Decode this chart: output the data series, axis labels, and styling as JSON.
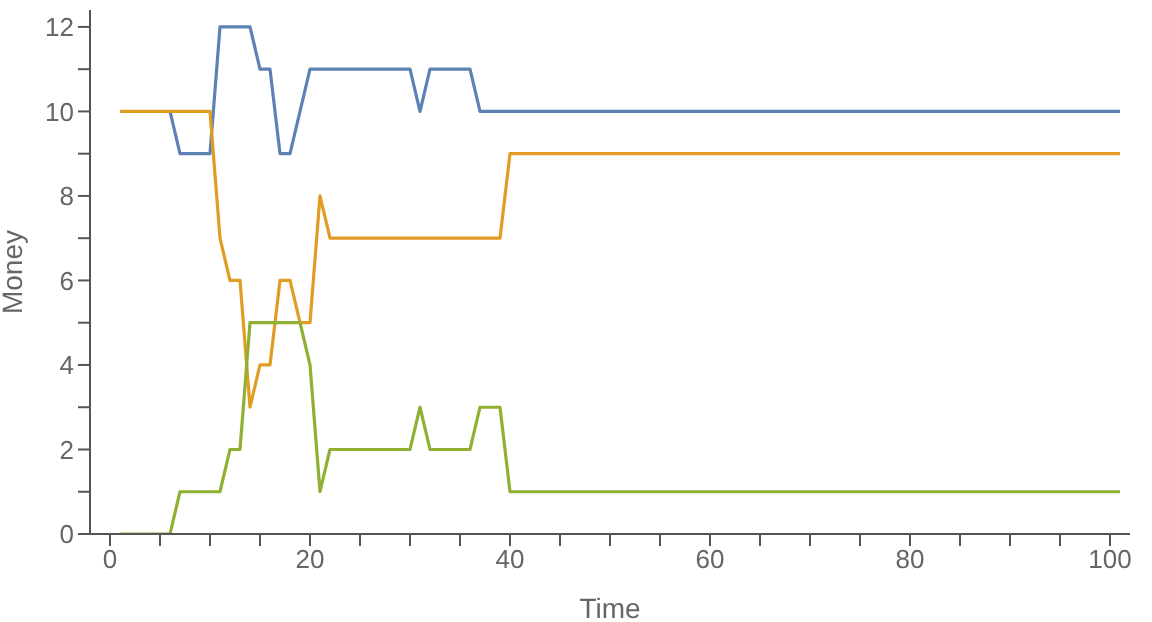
{
  "chart_data": {
    "type": "line",
    "xlabel": "Time",
    "ylabel": "Money",
    "x": [
      1,
      2,
      3,
      4,
      5,
      6,
      7,
      8,
      9,
      10,
      11,
      12,
      13,
      14,
      15,
      16,
      17,
      18,
      19,
      20,
      21,
      22,
      23,
      24,
      25,
      26,
      27,
      28,
      29,
      30,
      31,
      32,
      33,
      34,
      35,
      36,
      37,
      38,
      39,
      40,
      41,
      42,
      43,
      44,
      45,
      46,
      47,
      48,
      49,
      50,
      51,
      52,
      53,
      54,
      55,
      56,
      57,
      58,
      59,
      60,
      61,
      62,
      63,
      64,
      65,
      66,
      67,
      68,
      69,
      70,
      71,
      72,
      73,
      74,
      75,
      76,
      77,
      78,
      79,
      80,
      81,
      82,
      83,
      84,
      85,
      86,
      87,
      88,
      89,
      90,
      91,
      92,
      93,
      94,
      95,
      96,
      97,
      98,
      99,
      100,
      101
    ],
    "series": [
      {
        "color": "#5e81b5",
        "values": [
          null,
          null,
          null,
          null,
          null,
          10,
          9,
          9,
          9,
          9,
          12,
          12,
          12,
          12,
          11,
          11,
          9,
          9,
          10,
          11,
          11,
          11,
          11,
          11,
          11,
          11,
          11,
          11,
          11,
          11,
          10,
          11,
          11,
          11,
          11,
          11,
          10,
          10,
          10,
          10,
          10,
          10,
          10,
          10,
          10,
          10,
          10,
          10,
          10,
          10,
          10,
          10,
          10,
          10,
          10,
          10,
          10,
          10,
          10,
          10,
          10,
          10,
          10,
          10,
          10,
          10,
          10,
          10,
          10,
          10,
          10,
          10,
          10,
          10,
          10,
          10,
          10,
          10,
          10,
          10,
          10,
          10,
          10,
          10,
          10,
          10,
          10,
          10,
          10,
          10,
          10,
          10,
          10,
          10,
          10,
          10,
          10,
          10,
          10,
          10,
          10
        ]
      },
      {
        "color": "#e19c24",
        "values": [
          10,
          10,
          10,
          10,
          10,
          10,
          10,
          10,
          10,
          10,
          7,
          6,
          6,
          3,
          4,
          4,
          6,
          6,
          5,
          5,
          8,
          7,
          7,
          7,
          7,
          7,
          7,
          7,
          7,
          7,
          7,
          7,
          7,
          7,
          7,
          7,
          7,
          7,
          7,
          9,
          9,
          9,
          9,
          9,
          9,
          9,
          9,
          9,
          9,
          9,
          9,
          9,
          9,
          9,
          9,
          9,
          9,
          9,
          9,
          9,
          9,
          9,
          9,
          9,
          9,
          9,
          9,
          9,
          9,
          9,
          9,
          9,
          9,
          9,
          9,
          9,
          9,
          9,
          9,
          9,
          9,
          9,
          9,
          9,
          9,
          9,
          9,
          9,
          9,
          9,
          9,
          9,
          9,
          9,
          9,
          9,
          9,
          9,
          9,
          9,
          9
        ]
      },
      {
        "color": "#8fb032",
        "values": [
          0,
          0,
          0,
          0,
          0,
          0,
          1,
          1,
          1,
          1,
          1,
          2,
          2,
          5,
          5,
          5,
          5,
          5,
          5,
          4,
          1,
          2,
          2,
          2,
          2,
          2,
          2,
          2,
          2,
          2,
          3,
          2,
          2,
          2,
          2,
          2,
          3,
          3,
          3,
          1,
          1,
          1,
          1,
          1,
          1,
          1,
          1,
          1,
          1,
          1,
          1,
          1,
          1,
          1,
          1,
          1,
          1,
          1,
          1,
          1,
          1,
          1,
          1,
          1,
          1,
          1,
          1,
          1,
          1,
          1,
          1,
          1,
          1,
          1,
          1,
          1,
          1,
          1,
          1,
          1,
          1,
          1,
          1,
          1,
          1,
          1,
          1,
          1,
          1,
          1,
          1,
          1,
          1,
          1,
          1,
          1,
          1,
          1,
          1,
          1,
          1
        ]
      }
    ],
    "xlim": [
      -2,
      102
    ],
    "ylim": [
      0,
      12.4
    ],
    "xticks": [
      0,
      {
        "value": 5,
        "label": null
      },
      {
        "value": 10,
        "label": null
      },
      {
        "value": 15,
        "label": null
      },
      20,
      {
        "value": 25,
        "label": null
      },
      {
        "value": 30,
        "label": null
      },
      {
        "value": 35,
        "label": null
      },
      40,
      {
        "value": 45,
        "label": null
      },
      {
        "value": 50,
        "label": null
      },
      {
        "value": 55,
        "label": null
      },
      60,
      {
        "value": 65,
        "label": null
      },
      {
        "value": 70,
        "label": null
      },
      {
        "value": 75,
        "label": null
      },
      80,
      {
        "value": 85,
        "label": null
      },
      {
        "value": 90,
        "label": null
      },
      {
        "value": 95,
        "label": null
      },
      100
    ],
    "yticks": [
      0,
      {
        "value": 1,
        "label": null
      },
      2,
      {
        "value": 3,
        "label": null
      },
      4,
      {
        "value": 5,
        "label": null
      },
      6,
      {
        "value": 7,
        "label": null
      },
      8,
      {
        "value": 9,
        "label": null
      },
      10,
      {
        "value": 11,
        "label": null
      },
      12
    ]
  }
}
